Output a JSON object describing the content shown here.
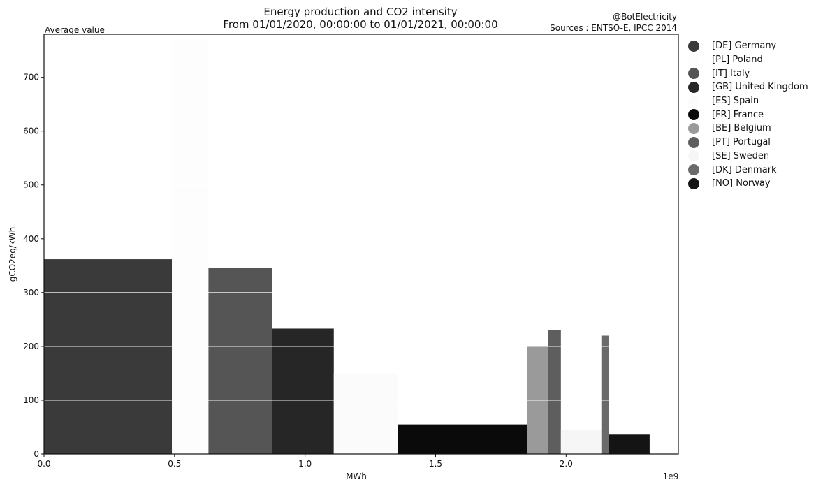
{
  "header": {
    "title_line1": "Energy production and CO2 intensity",
    "title_line2": "From 01/01/2020, 00:00:00 to 01/01/2021, 00:00:00",
    "credit": "@BotElectricity",
    "sources": "Sources : ENTSO-E, IPCC 2014",
    "corner_label": "Average value"
  },
  "chart_data": {
    "type": "bar",
    "title": "Energy production and CO2 intensity",
    "subtitle": "From 01/01/2020, 00:00:00 to 01/01/2021, 00:00:00",
    "xlabel": "MWh",
    "ylabel": "gCO2eq/kWh",
    "x_scale_note": "1e9",
    "xlim": [
      0,
      2.43
    ],
    "ylim": [
      0,
      780
    ],
    "x_ticks": [
      0.0,
      0.5,
      1.0,
      1.5,
      2.0
    ],
    "x_tick_labels": [
      "0.0",
      "0.5",
      "1.0",
      "1.5",
      "2.0"
    ],
    "y_ticks": [
      0,
      100,
      200,
      300,
      400,
      500,
      600,
      700
    ],
    "y_tick_labels": [
      "0",
      "100",
      "200",
      "300",
      "400",
      "500",
      "600",
      "700"
    ],
    "grid": "horizontal",
    "legend_position": "outside-right",
    "series": [
      {
        "code": "DE",
        "label": "[DE] Germany",
        "x_start": 0.0,
        "x_end": 0.49,
        "value": 362,
        "color": "#3a3a3a"
      },
      {
        "code": "PL",
        "label": "[PL] Poland",
        "x_start": 0.49,
        "x_end": 0.63,
        "value": 770,
        "color": "#fdfdfd"
      },
      {
        "code": "IT",
        "label": "[IT] Italy",
        "x_start": 0.63,
        "x_end": 0.875,
        "value": 346,
        "color": "#555555"
      },
      {
        "code": "GB",
        "label": "[GB] United Kingdom",
        "x_start": 0.875,
        "x_end": 1.11,
        "value": 233,
        "color": "#262626"
      },
      {
        "code": "ES",
        "label": "[ES] Spain",
        "x_start": 1.11,
        "x_end": 1.355,
        "value": 150,
        "color": "#fbfbfb"
      },
      {
        "code": "FR",
        "label": "[FR] France",
        "x_start": 1.355,
        "x_end": 1.85,
        "value": 55,
        "color": "#0a0a0a"
      },
      {
        "code": "BE",
        "label": "[BE] Belgium",
        "x_start": 1.85,
        "x_end": 1.93,
        "value": 201,
        "color": "#9a9a9a"
      },
      {
        "code": "PT",
        "label": "[PT] Portugal",
        "x_start": 1.93,
        "x_end": 1.98,
        "value": 230,
        "color": "#5e5e5e"
      },
      {
        "code": "SE",
        "label": "[SE] Sweden",
        "x_start": 1.98,
        "x_end": 2.135,
        "value": 45,
        "color": "#f6f6f6"
      },
      {
        "code": "DK",
        "label": "[DK] Denmark",
        "x_start": 2.135,
        "x_end": 2.165,
        "value": 220,
        "color": "#6a6a6a"
      },
      {
        "code": "NO",
        "label": "[NO] Norway",
        "x_start": 2.165,
        "x_end": 2.32,
        "value": 36,
        "color": "#141414"
      }
    ]
  }
}
